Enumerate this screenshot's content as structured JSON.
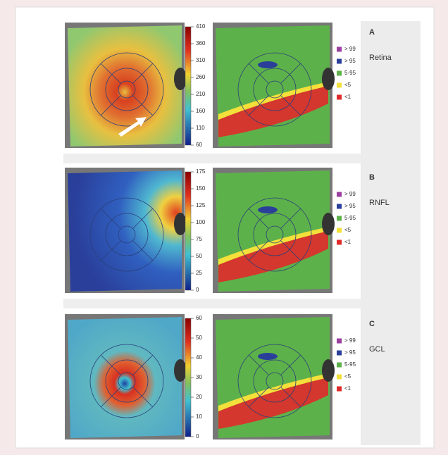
{
  "panels": [
    {
      "letter": "A",
      "label": "Retina",
      "colorbar": {
        "lim": [
          60,
          410
        ],
        "ticks": [
          410,
          360,
          310,
          260,
          210,
          160,
          110,
          60
        ]
      }
    },
    {
      "letter": "B",
      "label": "RNFL",
      "colorbar": {
        "lim": [
          0,
          175
        ],
        "ticks": [
          175,
          150,
          125,
          100,
          75,
          50,
          25,
          0
        ]
      }
    },
    {
      "letter": "C",
      "label": "GCL",
      "colorbar": {
        "lim": [
          0,
          60
        ],
        "ticks": [
          60,
          50,
          40,
          30,
          20,
          10,
          0
        ]
      }
    }
  ],
  "legend": [
    {
      "label": "> 99",
      "color": "#9b3fa0"
    },
    {
      "label": "> 95",
      "color": "#2a3f9a"
    },
    {
      "label": "5-95",
      "color": "#5db14a"
    },
    {
      "label": "<5",
      "color": "#f3e03a"
    },
    {
      "label": "<1",
      "color": "#e02a2a"
    }
  ]
}
